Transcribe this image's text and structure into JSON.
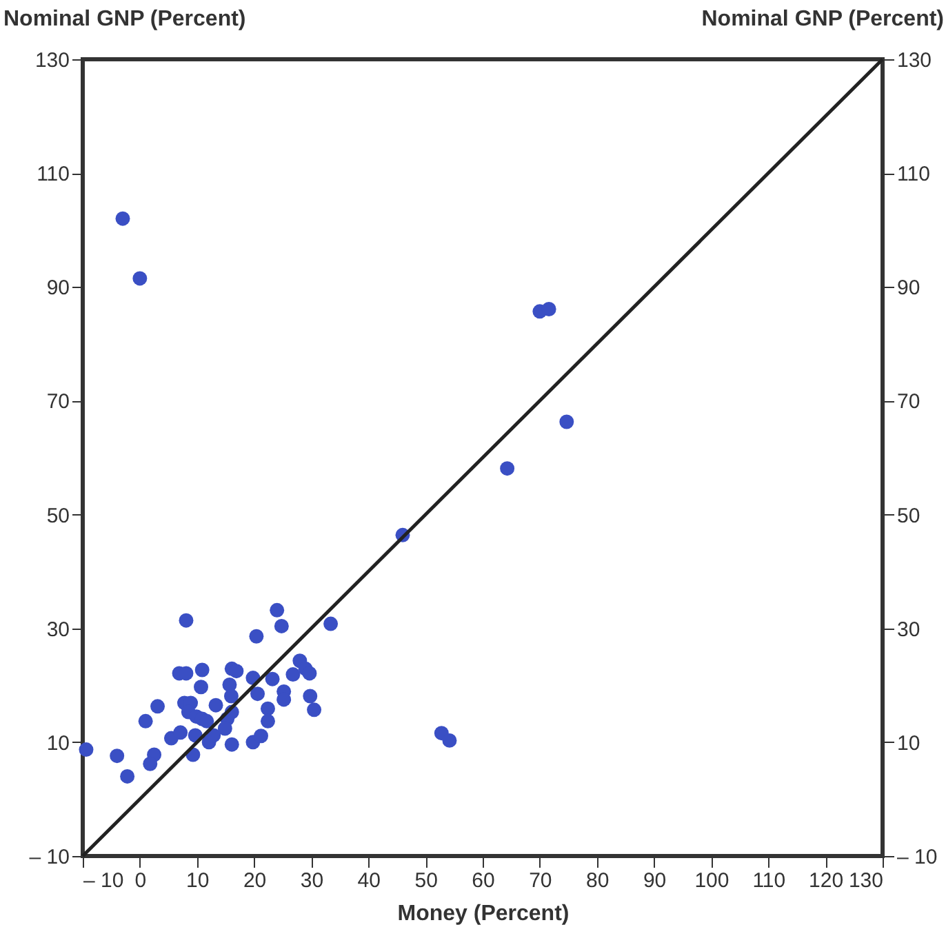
{
  "chart_data": {
    "type": "scatter",
    "xlabel": "Money (Percent)",
    "ylabel": "Nominal GNP (Percent)",
    "y2label": "Nominal GNP (Percent)",
    "xlim": [
      -10,
      130
    ],
    "ylim": [
      -10,
      130
    ],
    "y2lim": [
      -10,
      130
    ],
    "xticks": [
      {
        "value": -10,
        "label": "– 10"
      },
      0,
      10,
      20,
      30,
      40,
      50,
      60,
      70,
      80,
      90,
      100,
      110,
      120,
      130
    ],
    "yticks": [
      {
        "value": -10,
        "label": "– 10"
      },
      10,
      30,
      50,
      70,
      90,
      110,
      130
    ],
    "y2ticks": [
      {
        "value": -10,
        "label": "– 10"
      },
      10,
      30,
      50,
      70,
      90,
      110,
      130
    ],
    "grid": false,
    "marker": "circle",
    "series": [
      {
        "color": "#3a4fc4",
        "x": [
          -3,
          0,
          70,
          71.6,
          74.7,
          64.3,
          46,
          33.4,
          52.8,
          54.2,
          -9.4,
          -4,
          -2.2,
          1,
          3.1,
          2.5,
          1.8,
          5.5,
          7.1,
          8.1,
          6.9,
          8.1,
          10.9,
          10.7,
          7.8,
          8.9,
          8.5,
          9.9,
          10.9,
          11.7,
          9.7,
          9.3,
          12.1,
          12.9,
          13.3,
          15.3,
          14.9,
          16.1,
          15.7,
          16.1,
          16.9,
          16,
          16.1,
          19.8,
          20.6,
          20.4,
          19.8,
          21.2,
          22.4,
          22.4,
          23.2,
          24,
          24.8,
          25.2,
          25.2,
          26.8,
          28,
          29,
          29.7,
          29.8,
          30.5
        ],
        "values": [
          102,
          91.5,
          85.7,
          86.1,
          66.3,
          58.1,
          46.4,
          30.8,
          11.6,
          10.3,
          8.7,
          7.6,
          4,
          13.7,
          16.3,
          7.8,
          6.2,
          10.7,
          11.7,
          31.4,
          22.1,
          22.1,
          22.7,
          19.7,
          16.9,
          16.9,
          15.3,
          14.5,
          14.1,
          13.7,
          11.2,
          7.8,
          10,
          11.2,
          16.5,
          14.1,
          12.4,
          9.6,
          20.1,
          22.9,
          22.5,
          18.1,
          15.3,
          21.3,
          18.5,
          28.6,
          10,
          11.1,
          15.9,
          13.7,
          21.1,
          33.2,
          30.4,
          18.9,
          17.5,
          21.9,
          24.3,
          22.9,
          22.1,
          18.1,
          15.7
        ]
      },
      {
        "type": "line",
        "marker": "none",
        "color": "#222222",
        "line_style": "solid",
        "x": [
          -10,
          130
        ],
        "values": [
          -10,
          130
        ]
      }
    ]
  }
}
